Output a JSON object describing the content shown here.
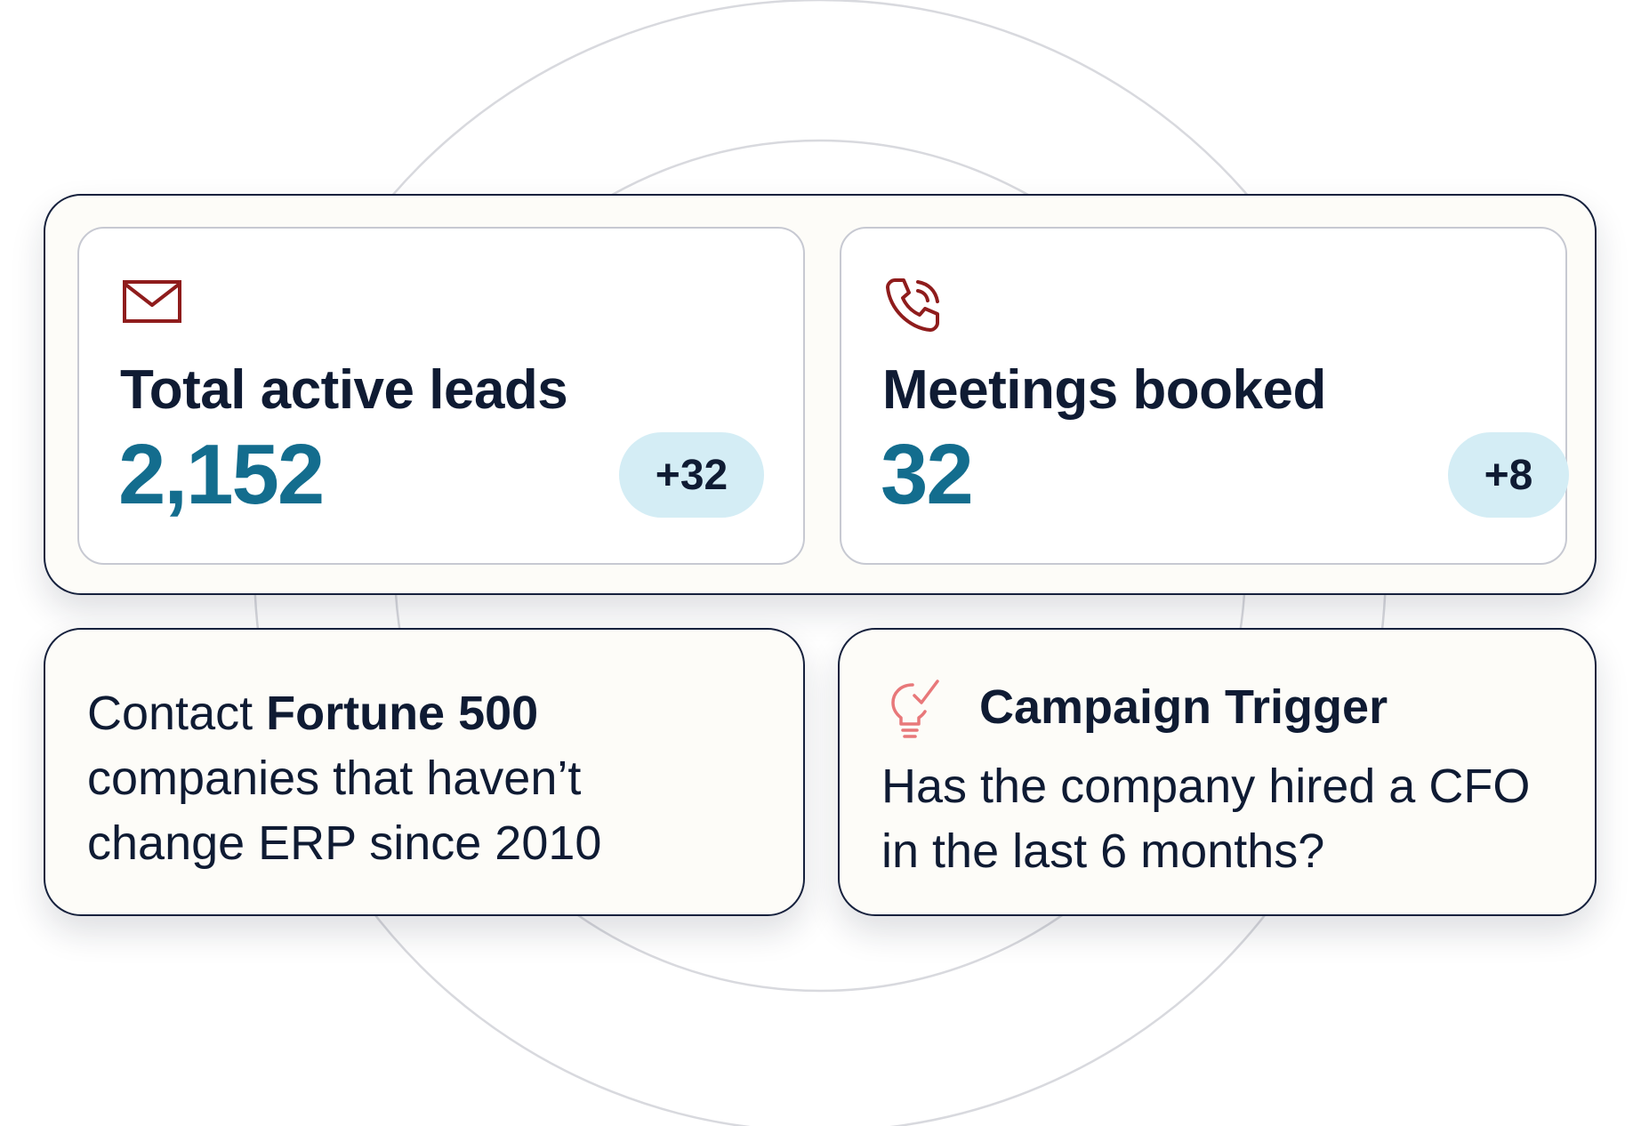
{
  "stats": {
    "leads": {
      "icon": "mail-icon",
      "title": "Total active leads",
      "value": "2,152",
      "delta": "+32"
    },
    "meetings": {
      "icon": "phone-ringing-icon",
      "title": "Meetings booked",
      "value": "32",
      "delta": "+8"
    }
  },
  "query": {
    "prefix": "Contact ",
    "emphasis": "Fortune 500",
    "suffix": " companies that haven’t change ERP since 2010"
  },
  "trigger": {
    "icon": "lightbulb-check-icon",
    "title": "Campaign Trigger",
    "question": "Has the company hired a CFO in the last 6 months?"
  },
  "colors": {
    "value_teal": "#136d8e",
    "pill_bg": "#d4edf5",
    "icon_red": "#8f1c1c",
    "icon_coral": "#e8787a",
    "text_navy": "#0f1b33",
    "card_bg": "#fdfcf8"
  }
}
